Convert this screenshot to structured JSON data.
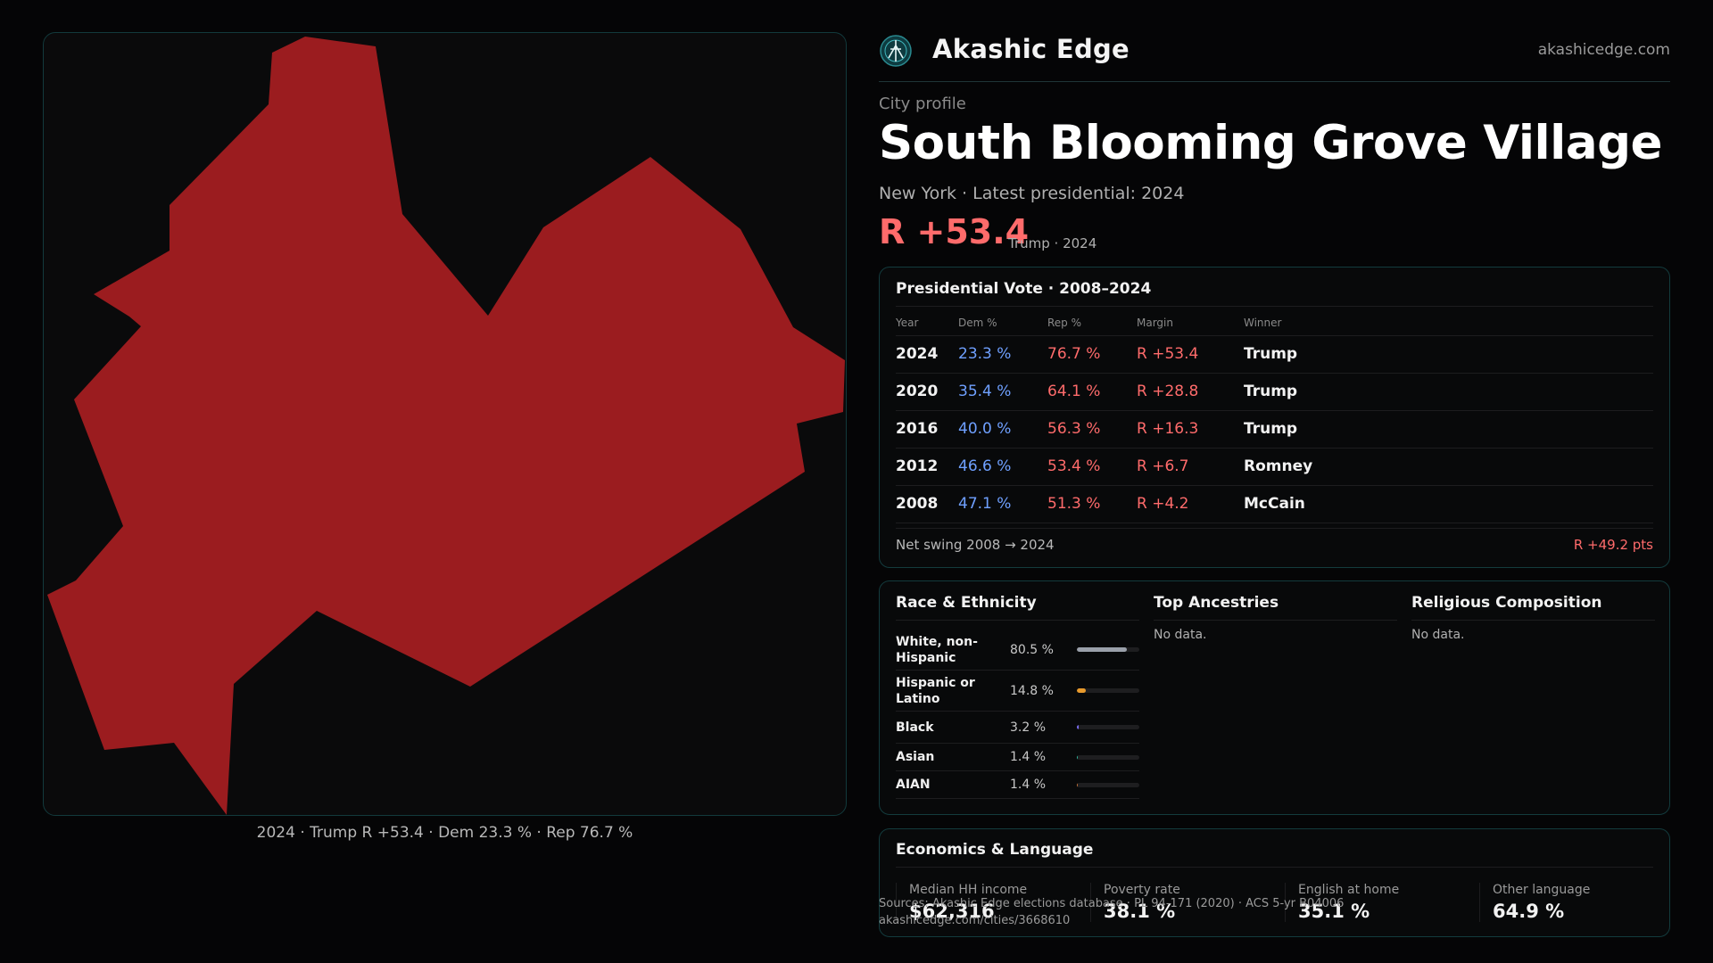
{
  "brand": {
    "name": "Akashic Edge",
    "url": "akashicedge.com"
  },
  "header": {
    "eyebrow": "City profile",
    "title": "South Blooming Grove Village",
    "subtitle": "New York  · Latest presidential: 2024",
    "margin": "R +53.4",
    "margin_note": "Trump · 2024"
  },
  "map": {
    "caption": "2024 · Trump R +53.4 · Dem 23.3 % · Rep 76.7 %",
    "fill_color": "#9b1c1f"
  },
  "presidential": {
    "title": "Presidential Vote · 2008–2024",
    "columns": [
      "Year",
      "Dem %",
      "Rep %",
      "Margin",
      "Winner"
    ],
    "rows": [
      {
        "year": "2024",
        "dem": "23.3 %",
        "rep": "76.7 %",
        "margin": "R +53.4",
        "winner": "Trump"
      },
      {
        "year": "2020",
        "dem": "35.4 %",
        "rep": "64.1 %",
        "margin": "R +28.8",
        "winner": "Trump"
      },
      {
        "year": "2016",
        "dem": "40.0 %",
        "rep": "56.3 %",
        "margin": "R +16.3",
        "winner": "Trump"
      },
      {
        "year": "2012",
        "dem": "46.6 %",
        "rep": "53.4 %",
        "margin": "R +6.7",
        "winner": "Romney"
      },
      {
        "year": "2008",
        "dem": "47.1 %",
        "rep": "51.3 %",
        "margin": "R +4.2",
        "winner": "McCain"
      }
    ],
    "swing_label": "Net swing 2008 → 2024",
    "swing_value": "R +49.2 pts"
  },
  "race": {
    "title": "Race & Ethnicity",
    "rows": [
      {
        "label": "White, non-Hispanic",
        "pct": "80.5 %",
        "value": 80.5,
        "color": "#9aa0aa"
      },
      {
        "label": "Hispanic or Latino",
        "pct": "14.8 %",
        "value": 14.8,
        "color": "#e89a2c"
      },
      {
        "label": "Black",
        "pct": "3.2 %",
        "value": 3.2,
        "color": "#7a6cf0"
      },
      {
        "label": "Asian",
        "pct": "1.4 %",
        "value": 1.4,
        "color": "#2fb39a"
      },
      {
        "label": "AIAN",
        "pct": "1.4 %",
        "value": 1.4,
        "color": "#c0703a"
      }
    ]
  },
  "ancestries": {
    "title": "Top Ancestries",
    "empty": "No data."
  },
  "religion": {
    "title": "Religious Composition",
    "empty": "No data."
  },
  "economics": {
    "title": "Economics & Language",
    "stats": [
      {
        "label": "Median HH income",
        "value": "$62,316"
      },
      {
        "label": "Poverty rate",
        "value": "38.1 %"
      },
      {
        "label": "English at home",
        "value": "35.1 %"
      },
      {
        "label": "Other language",
        "value": "64.9 %"
      }
    ]
  },
  "sources": {
    "line1": "Sources: Akashic Edge elections database · PL 94-171 (2020) · ACS 5-yr B04006",
    "line2": "akashicedge.com/cities/3668610"
  }
}
